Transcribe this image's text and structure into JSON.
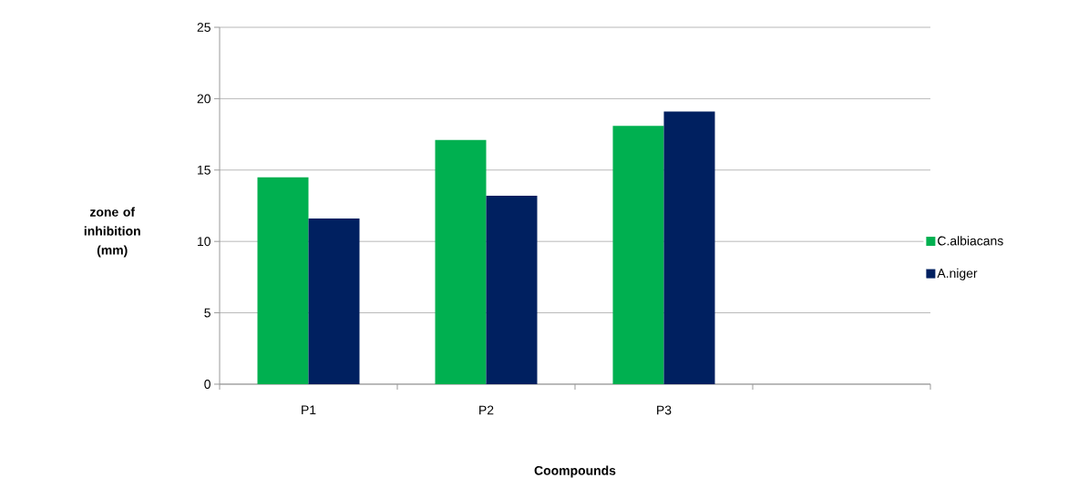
{
  "chart_data": {
    "type": "bar",
    "xlabel": "Coompounds",
    "ylabel": "zone of inhibition (mm)",
    "categories": [
      "P1",
      "P2",
      "P3",
      null
    ],
    "series": [
      {
        "name": "C.albiacans",
        "color": "#00b050",
        "values": [
          14.5,
          17.1,
          18.1,
          null
        ]
      },
      {
        "name": "A.niger",
        "color": "#002060",
        "values": [
          11.6,
          13.2,
          19.1,
          null
        ]
      }
    ],
    "ylim": [
      0,
      25
    ],
    "yticks": [
      0,
      5,
      10,
      15,
      20,
      25
    ],
    "grid": "y",
    "legend": "right"
  }
}
